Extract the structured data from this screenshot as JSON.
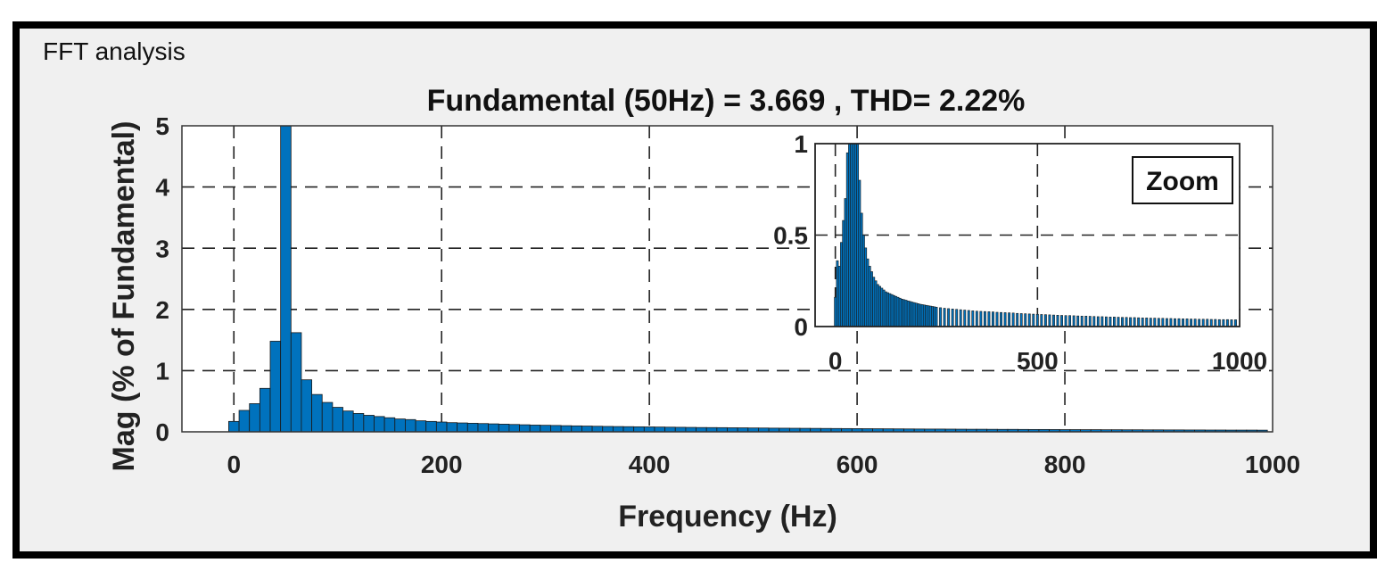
{
  "panel": {
    "title": "FFT analysis",
    "background": "#f0f0f0",
    "frame_color": "#000000"
  },
  "chart_data": [
    {
      "type": "bar",
      "title": "Fundamental (50Hz) = 3.669 , THD= 2.22%",
      "xlabel": "Frequency (Hz)",
      "ylabel": "Mag (% of Fundamental)",
      "xlim": [
        -50,
        1000
      ],
      "ylim": [
        0,
        5
      ],
      "xticks": [
        0,
        200,
        400,
        600,
        800,
        1000
      ],
      "yticks": [
        0,
        1,
        2,
        3,
        4,
        5
      ],
      "grid": true,
      "bar_color": "#0072bd",
      "bin_width_hz": 10,
      "x": [
        0,
        10,
        20,
        30,
        40,
        50,
        60,
        70,
        80,
        90,
        100,
        110,
        120,
        130,
        140,
        150,
        160,
        170,
        180,
        190,
        200,
        210,
        220,
        230,
        240,
        250,
        260,
        270,
        280,
        290,
        300,
        310,
        320,
        330,
        340,
        350,
        360,
        370,
        380,
        390,
        400,
        410,
        420,
        430,
        440,
        450,
        460,
        470,
        480,
        490,
        500,
        510,
        520,
        530,
        540,
        550,
        560,
        570,
        580,
        590,
        600,
        610,
        620,
        630,
        640,
        650,
        660,
        670,
        680,
        690,
        700,
        710,
        720,
        730,
        740,
        750,
        760,
        770,
        780,
        790,
        800,
        810,
        820,
        830,
        840,
        850,
        860,
        870,
        880,
        890,
        900,
        910,
        920,
        930,
        940,
        950,
        960,
        970,
        980,
        990
      ],
      "values": [
        0.17,
        0.35,
        0.46,
        0.71,
        1.48,
        5.0,
        1.62,
        0.85,
        0.61,
        0.48,
        0.4,
        0.34,
        0.3,
        0.27,
        0.25,
        0.23,
        0.21,
        0.2,
        0.18,
        0.17,
        0.16,
        0.15,
        0.145,
        0.14,
        0.135,
        0.13,
        0.125,
        0.12,
        0.115,
        0.11,
        0.107,
        0.104,
        0.1,
        0.097,
        0.094,
        0.091,
        0.088,
        0.086,
        0.084,
        0.082,
        0.08,
        0.078,
        0.076,
        0.074,
        0.072,
        0.07,
        0.069,
        0.068,
        0.066,
        0.065,
        0.063,
        0.062,
        0.06,
        0.059,
        0.058,
        0.057,
        0.056,
        0.055,
        0.054,
        0.053,
        0.052,
        0.051,
        0.05,
        0.049,
        0.048,
        0.047,
        0.046,
        0.045,
        0.045,
        0.044,
        0.043,
        0.042,
        0.042,
        0.041,
        0.04,
        0.04,
        0.039,
        0.038,
        0.038,
        0.037,
        0.036,
        0.036,
        0.035,
        0.035,
        0.034,
        0.034,
        0.033,
        0.033,
        0.032,
        0.032,
        0.031,
        0.031,
        0.03,
        0.03,
        0.029,
        0.029,
        0.028,
        0.028,
        0.028,
        0.027
      ]
    },
    {
      "type": "bar",
      "label": "Zoom",
      "xlim": [
        -50,
        1000
      ],
      "ylim": [
        0,
        1
      ],
      "xticks": [
        0,
        500,
        1000
      ],
      "yticks": [
        0,
        0.5,
        1
      ],
      "yticklabels": [
        "0",
        "0.5",
        "1"
      ],
      "grid": true,
      "bar_color": "#0072bd",
      "bin_width_hz": 5,
      "x": [
        0,
        5,
        10,
        15,
        20,
        25,
        30,
        35,
        40,
        45,
        50,
        55,
        60,
        65,
        70,
        75,
        80,
        85,
        90,
        95,
        100,
        105,
        110,
        115,
        120,
        125,
        130,
        135,
        140,
        145,
        150,
        155,
        160,
        165,
        170,
        175,
        180,
        185,
        190,
        195,
        200,
        205,
        210,
        215,
        220,
        225,
        230,
        235,
        240,
        245,
        250,
        260,
        270,
        280,
        290,
        300,
        310,
        320,
        330,
        340,
        350,
        360,
        370,
        380,
        390,
        400,
        410,
        420,
        430,
        440,
        450,
        460,
        470,
        480,
        490,
        500,
        510,
        520,
        530,
        540,
        550,
        560,
        570,
        580,
        590,
        600,
        610,
        620,
        630,
        640,
        650,
        660,
        670,
        680,
        690,
        700,
        710,
        720,
        730,
        740,
        750,
        760,
        770,
        780,
        790,
        800,
        810,
        820,
        830,
        840,
        850,
        860,
        870,
        880,
        890,
        900,
        910,
        920,
        930,
        940,
        950,
        960,
        970,
        980,
        990
      ],
      "values": [
        0.16,
        0.36,
        0.33,
        0.46,
        0.58,
        0.7,
        0.95,
        1.0,
        1.0,
        1.0,
        1.0,
        1.0,
        0.8,
        0.62,
        0.5,
        0.43,
        0.37,
        0.33,
        0.3,
        0.27,
        0.25,
        0.23,
        0.22,
        0.21,
        0.2,
        0.19,
        0.185,
        0.18,
        0.175,
        0.17,
        0.165,
        0.16,
        0.155,
        0.15,
        0.147,
        0.144,
        0.14,
        0.137,
        0.134,
        0.131,
        0.128,
        0.125,
        0.122,
        0.12,
        0.118,
        0.116,
        0.114,
        0.112,
        0.11,
        0.108,
        0.106,
        0.103,
        0.1,
        0.098,
        0.096,
        0.094,
        0.092,
        0.09,
        0.088,
        0.086,
        0.084,
        0.083,
        0.082,
        0.081,
        0.08,
        0.078,
        0.077,
        0.076,
        0.075,
        0.074,
        0.072,
        0.071,
        0.07,
        0.069,
        0.068,
        0.067,
        0.066,
        0.065,
        0.064,
        0.063,
        0.062,
        0.061,
        0.06,
        0.06,
        0.059,
        0.058,
        0.057,
        0.057,
        0.056,
        0.055,
        0.054,
        0.054,
        0.053,
        0.052,
        0.052,
        0.051,
        0.05,
        0.05,
        0.049,
        0.049,
        0.048,
        0.047,
        0.047,
        0.046,
        0.046,
        0.045,
        0.045,
        0.044,
        0.044,
        0.043,
        0.043,
        0.042,
        0.042,
        0.041,
        0.041,
        0.04,
        0.04,
        0.04,
        0.039,
        0.039,
        0.038,
        0.038,
        0.038,
        0.037,
        0.037
      ]
    }
  ]
}
